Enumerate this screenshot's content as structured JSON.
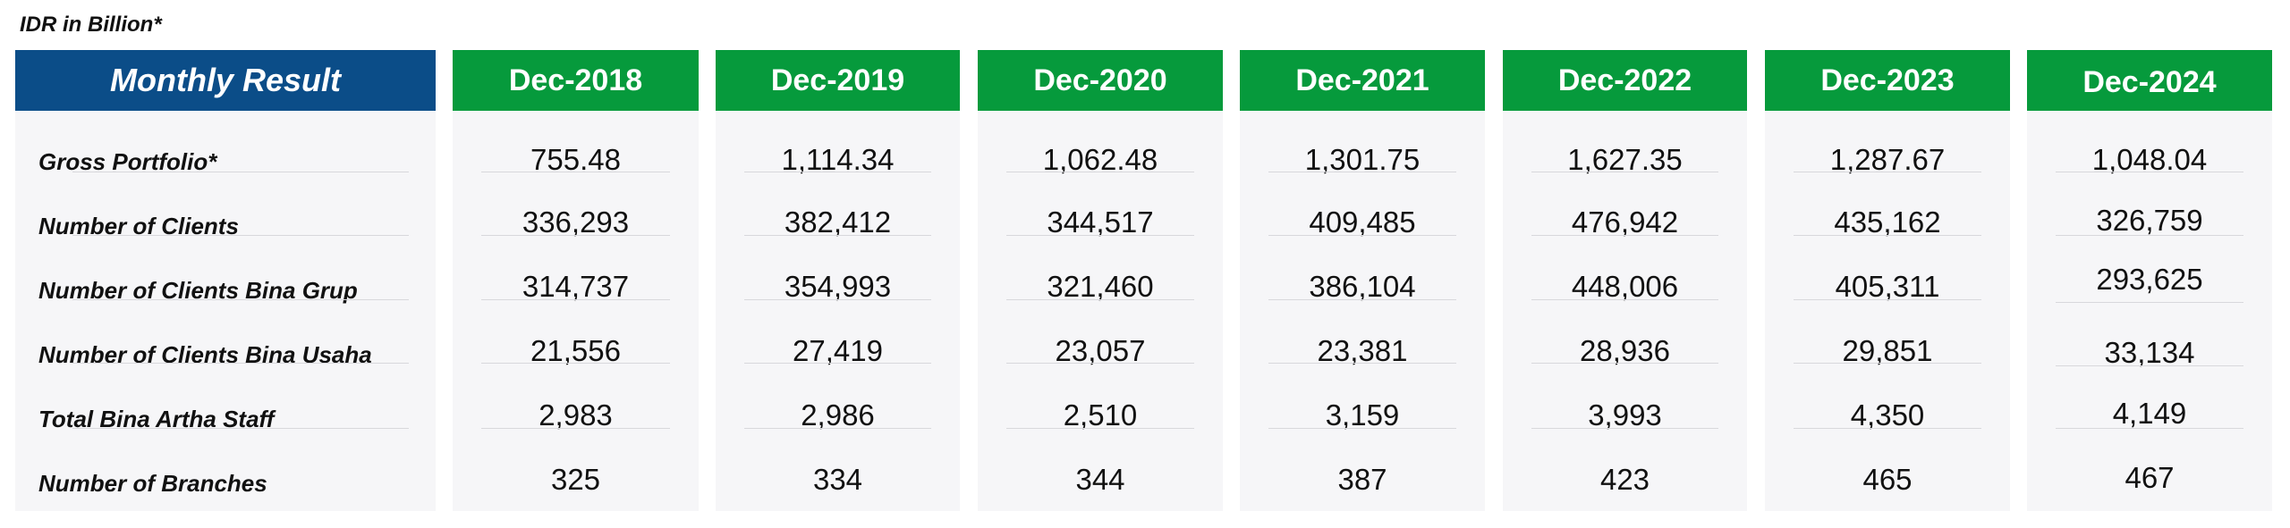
{
  "unit_note": "IDR in Billion*",
  "header_label": "Monthly Result",
  "row_labels": [
    "Gross Portfolio*",
    "Number of Clients",
    "Number of Clients Bina Grup",
    "Number of Clients Bina Usaha",
    "Total Bina Artha Staff",
    "Number of Branches"
  ],
  "years": [
    {
      "label": "Dec-2018",
      "values": [
        "755.48",
        "336,293",
        "314,737",
        "21,556",
        "2,983",
        "325"
      ]
    },
    {
      "label": "Dec-2019",
      "values": [
        "1,114.34",
        "382,412",
        "354,993",
        "27,419",
        "2,986",
        "334"
      ]
    },
    {
      "label": "Dec-2020",
      "values": [
        "1,062.48",
        "344,517",
        "321,460",
        "23,057",
        "2,510",
        "344"
      ]
    },
    {
      "label": "Dec-2021",
      "values": [
        "1,301.75",
        "409,485",
        "386,104",
        "23,381",
        "3,159",
        "387"
      ]
    },
    {
      "label": "Dec-2022",
      "values": [
        "1,627.35",
        "476,942",
        "448,006",
        "28,936",
        "3,993",
        "423"
      ]
    },
    {
      "label": "Dec-2023",
      "values": [
        "1,287.67",
        "435,162",
        "405,311",
        "29,851",
        "4,350",
        "465"
      ]
    },
    {
      "label": "Dec-2024",
      "values": [
        "1,048.04",
        "326,759",
        "293,625",
        "33,134",
        "4,149",
        "467"
      ]
    }
  ],
  "colors": {
    "label_header": "#0b4d88",
    "year_header": "#069a3c",
    "panel": "#f6f6f8"
  }
}
